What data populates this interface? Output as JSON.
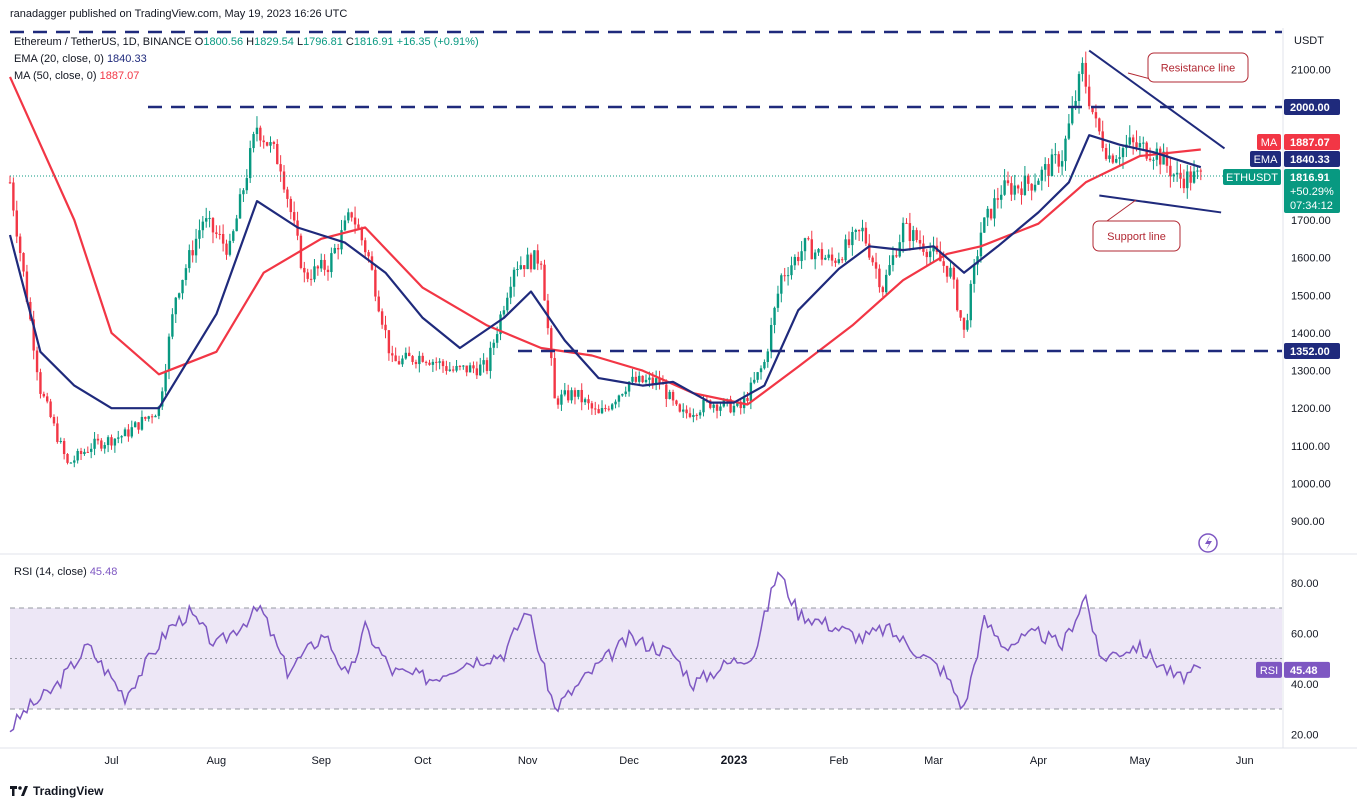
{
  "header": {
    "publisher": "ranadagger published on TradingView.com, May 19, 2023 16:26 UTC",
    "symbol": "Ethereum / TetherUS, 1D, BINANCE",
    "ohlc": {
      "o_label": "O",
      "o": "1800.56",
      "h_label": "H",
      "h": "1829.54",
      "l_label": "L",
      "l": "1796.81",
      "c_label": "C",
      "c": "1816.91",
      "change": "+16.35 (+0.91%)"
    },
    "ema_label": "EMA (20, close, 0)",
    "ema_value": "1840.33",
    "ma_label": "MA (50, close, 0)",
    "ma_value": "1887.07",
    "rsi_label": "RSI (14, close)",
    "rsi_value": "45.48"
  },
  "brand": "TradingView",
  "colors": {
    "up": "#089981",
    "down": "#f23645",
    "ema": "#1f2a7c",
    "ma": "#f23645",
    "rsi": "#7e57c2",
    "rsi_band": "#ede7f6",
    "annot": "#1f2a7c"
  },
  "chart_data": [
    {
      "type": "candlestick",
      "title": "Ethereum / TetherUS, 1D, BINANCE",
      "currency_label": "USDT",
      "ylim": [
        820,
        2210
      ],
      "y_ticks": [
        "900.00",
        "1000.00",
        "1100.00",
        "1200.00",
        "1300.00",
        "1400.00",
        "1500.00",
        "1600.00",
        "1700.00",
        "1800.00",
        "2000.00",
        "2100.00"
      ],
      "x_labels": [
        "Jul",
        "Aug",
        "Sep",
        "Oct",
        "Nov",
        "Dec",
        "2023",
        "Feb",
        "Mar",
        "Apr",
        "May",
        "Jun"
      ],
      "price_tags": {
        "last": {
          "label": "ETHUSDT",
          "value": "1816.91",
          "change": "+50.29%",
          "countdown": "07:34:12"
        },
        "ma": {
          "label": "MA",
          "value": "1887.07"
        },
        "ema": {
          "label": "EMA",
          "value": "1840.33"
        },
        "level_2000": "2000.00",
        "level_1352": "1352.00"
      },
      "horizontal_levels": [
        2000,
        1352
      ],
      "annotations": [
        {
          "text": "Resistance line"
        },
        {
          "text": "Support line"
        }
      ],
      "trendlines": [
        {
          "name": "Resistance line",
          "from": [
            "2023-04-16",
            2150
          ],
          "to": [
            "2023-05-26",
            1890
          ]
        },
        {
          "name": "Support line",
          "from": [
            "2023-04-19",
            1765
          ],
          "to": [
            "2023-05-25",
            1720
          ]
        }
      ],
      "series": [
        {
          "name": "EMA",
          "type": "line",
          "x": [
            "2022-06-01",
            "2022-06-10",
            "2022-06-20",
            "2022-07-01",
            "2022-07-15",
            "2022-08-01",
            "2022-08-13",
            "2022-08-25",
            "2022-09-08",
            "2022-09-20",
            "2022-10-01",
            "2022-10-12",
            "2022-10-25",
            "2022-11-02",
            "2022-11-12",
            "2022-11-22",
            "2022-12-05",
            "2022-12-14",
            "2022-12-25",
            "2023-01-01",
            "2023-01-10",
            "2023-01-20",
            "2023-02-01",
            "2023-02-10",
            "2023-02-20",
            "2023-03-01",
            "2023-03-10",
            "2023-03-20",
            "2023-04-01",
            "2023-04-10",
            "2023-04-16",
            "2023-04-25",
            "2023-05-05",
            "2023-05-19"
          ],
          "values": [
            1660,
            1350,
            1260,
            1200,
            1200,
            1450,
            1750,
            1680,
            1640,
            1560,
            1440,
            1360,
            1440,
            1510,
            1380,
            1280,
            1260,
            1270,
            1215,
            1215,
            1260,
            1460,
            1570,
            1630,
            1620,
            1630,
            1560,
            1630,
            1720,
            1800,
            1925,
            1900,
            1880,
            1840
          ]
        },
        {
          "name": "MA",
          "type": "line",
          "x": [
            "2022-06-01",
            "2022-06-20",
            "2022-07-01",
            "2022-07-15",
            "2022-08-01",
            "2022-08-15",
            "2022-09-01",
            "2022-09-14",
            "2022-10-01",
            "2022-10-20",
            "2022-11-05",
            "2022-11-20",
            "2022-12-05",
            "2022-12-20",
            "2023-01-05",
            "2023-01-20",
            "2023-02-05",
            "2023-02-20",
            "2023-03-05",
            "2023-03-15",
            "2023-04-01",
            "2023-04-15",
            "2023-05-01",
            "2023-05-19"
          ],
          "values": [
            2080,
            1700,
            1400,
            1290,
            1350,
            1560,
            1650,
            1680,
            1520,
            1420,
            1360,
            1340,
            1300,
            1240,
            1210,
            1310,
            1420,
            1540,
            1610,
            1630,
            1690,
            1800,
            1870,
            1887
          ]
        }
      ]
    },
    {
      "type": "line",
      "title": "RSI (14, close)",
      "ylim": [
        12,
        92
      ],
      "y_ticks": [
        "20.00",
        "40.00",
        "60.00",
        "80.00"
      ],
      "bands": [
        30,
        70
      ],
      "midline": 50,
      "last_tag": {
        "label": "RSI",
        "value": "45.48"
      },
      "series": [
        {
          "name": "RSI",
          "x": [
            "2022-06-01",
            "2022-06-06",
            "2022-06-14",
            "2022-06-24",
            "2022-07-05",
            "2022-07-18",
            "2022-07-24",
            "2022-08-01",
            "2022-08-14",
            "2022-08-22",
            "2022-09-02",
            "2022-09-09",
            "2022-09-14",
            "2022-09-22",
            "2022-10-04",
            "2022-10-12",
            "2022-10-25",
            "2022-11-01",
            "2022-11-09",
            "2022-11-20",
            "2022-12-01",
            "2022-12-14",
            "2022-12-20",
            "2022-12-30",
            "2023-01-07",
            "2023-01-14",
            "2023-01-20",
            "2023-01-30",
            "2023-02-08",
            "2023-02-15",
            "2023-02-25",
            "2023-03-04",
            "2023-03-10",
            "2023-03-16",
            "2023-03-22",
            "2023-04-01",
            "2023-04-08",
            "2023-04-15",
            "2023-04-19",
            "2023-04-30",
            "2023-05-05",
            "2023-05-12",
            "2023-05-19"
          ],
          "values": [
            22,
            30,
            38,
            55,
            35,
            62,
            68,
            55,
            70,
            45,
            60,
            42,
            62,
            45,
            42,
            48,
            52,
            70,
            30,
            45,
            58,
            52,
            40,
            48,
            52,
            85,
            68,
            63,
            58,
            62,
            52,
            45,
            30,
            65,
            55,
            60,
            55,
            75,
            50,
            55,
            50,
            42,
            45.48
          ]
        }
      ]
    }
  ]
}
